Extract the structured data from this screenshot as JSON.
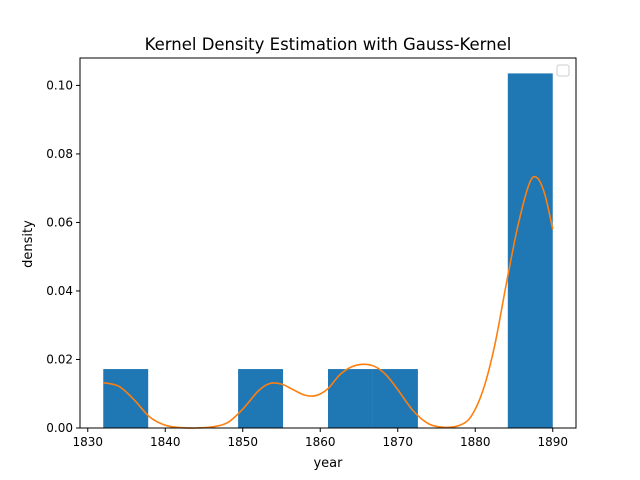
{
  "chart_data": {
    "type": "bar",
    "title": "Kernel Density Estimation with Gauss-Kernel",
    "xlabel": "year",
    "ylabel": "density",
    "xlim": [
      1829,
      1893
    ],
    "ylim": [
      0,
      0.108
    ],
    "xticks": [
      1830,
      1840,
      1850,
      1860,
      1870,
      1880,
      1890
    ],
    "yticks": [
      0.0,
      0.02,
      0.04,
      0.06,
      0.08,
      0.1
    ],
    "xtick_labels": [
      "1830",
      "1840",
      "1850",
      "1860",
      "1870",
      "1880",
      "1890"
    ],
    "ytick_labels": [
      "0.00",
      "0.02",
      "0.04",
      "0.06",
      "0.08",
      "0.10"
    ],
    "legend": {
      "placement": "upper right",
      "entries": []
    },
    "grid": false,
    "histogram": {
      "color": "#1f77b4",
      "bins": [
        {
          "x0": 1832.0,
          "x1": 1837.8,
          "density": 0.0172
        },
        {
          "x0": 1837.8,
          "x1": 1843.6,
          "density": 0.0
        },
        {
          "x0": 1843.6,
          "x1": 1849.4,
          "density": 0.0
        },
        {
          "x0": 1849.4,
          "x1": 1855.2,
          "density": 0.0172
        },
        {
          "x0": 1855.2,
          "x1": 1861.0,
          "density": 0.0
        },
        {
          "x0": 1861.0,
          "x1": 1866.8,
          "density": 0.0172
        },
        {
          "x0": 1866.8,
          "x1": 1872.6,
          "density": 0.0172
        },
        {
          "x0": 1872.6,
          "x1": 1878.4,
          "density": 0.0
        },
        {
          "x0": 1878.4,
          "x1": 1884.2,
          "density": 0.0
        },
        {
          "x0": 1884.2,
          "x1": 1890.0,
          "density": 0.1035
        }
      ]
    },
    "kde": {
      "color": "#ff7f0e",
      "x": [
        1832,
        1834,
        1836,
        1838,
        1840,
        1842,
        1844,
        1846,
        1848,
        1850,
        1852,
        1853.5,
        1855,
        1856.5,
        1858,
        1859.5,
        1861,
        1862.5,
        1864,
        1865.5,
        1867,
        1868.5,
        1870,
        1872,
        1874,
        1876,
        1878,
        1879.5,
        1881,
        1882.5,
        1884,
        1885.5,
        1887,
        1888,
        1889,
        1890
      ],
      "y": [
        0.0132,
        0.0122,
        0.0082,
        0.0032,
        0.0008,
        0.0001,
        0.0,
        0.0003,
        0.0015,
        0.0055,
        0.0108,
        0.013,
        0.0128,
        0.0112,
        0.0096,
        0.0095,
        0.0115,
        0.0155,
        0.0178,
        0.0186,
        0.018,
        0.0155,
        0.0112,
        0.005,
        0.0012,
        0.0002,
        0.0008,
        0.0035,
        0.011,
        0.024,
        0.042,
        0.059,
        0.0715,
        0.073,
        0.068,
        0.058
      ]
    }
  }
}
